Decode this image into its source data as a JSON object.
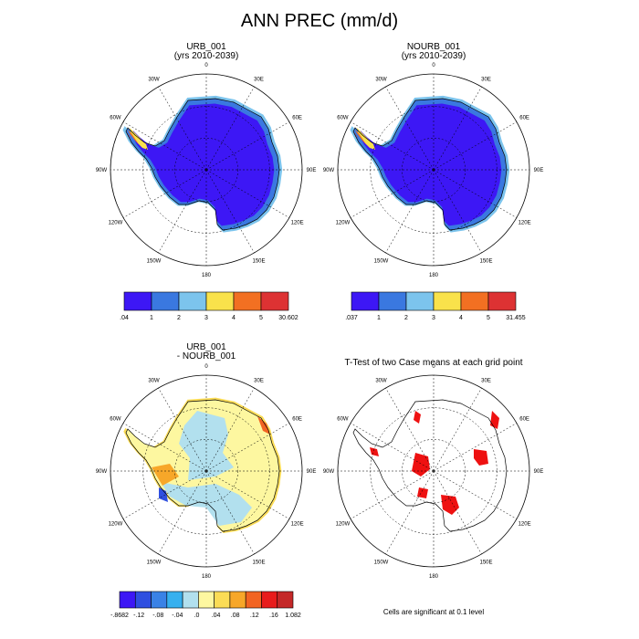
{
  "figure": {
    "title": "ANN PREC (mm/d)",
    "panels": [
      {
        "id": "urb",
        "title_line1": "URB_001",
        "title_line2": "(yrs 2010-2039)"
      },
      {
        "id": "nourb",
        "title_line1": "NOURB_001",
        "title_line2": "(yrs 2010-2039)"
      },
      {
        "id": "diff",
        "title_line1": "URB_001",
        "title_line2": "- NOURB_001"
      },
      {
        "id": "ttest",
        "title_line1": "T-Test of two Case means at each grid point",
        "title_line2": ""
      }
    ],
    "lon_labels": [
      "0",
      "30E",
      "60E",
      "90E",
      "120E",
      "150E",
      "180",
      "150W",
      "120W",
      "90W",
      "60W",
      "30W"
    ],
    "colorbar_urb": {
      "labels": [
        ".04",
        "1",
        "2",
        "3",
        "4",
        "5",
        "30.602"
      ],
      "colors": [
        "#3d17f5",
        "#3a78e0",
        "#7cc4ed",
        "#f9e24b",
        "#f27022",
        "#dd3233"
      ]
    },
    "colorbar_nourb": {
      "labels": [
        ".037",
        "1",
        "2",
        "3",
        "4",
        "5",
        "31.455"
      ],
      "colors": [
        "#3d17f5",
        "#3a78e0",
        "#7cc4ed",
        "#f9e24b",
        "#f27022",
        "#dd3233"
      ]
    },
    "colorbar_diff": {
      "labels": [
        "-.8682",
        "-.12",
        "-.08",
        "-.04",
        ".0",
        ".04",
        ".08",
        ".12",
        ".16",
        "1.082"
      ],
      "colors": [
        "#3d17f5",
        "#2f4fe0",
        "#3a82e6",
        "#37b0ee",
        "#b2e0ee",
        "#fdf7a0",
        "#fbdc56",
        "#f7a729",
        "#f26422",
        "#e81c1c",
        "#c42828"
      ]
    },
    "significance_note": "Cells are significant at 0.1 level",
    "colors": {
      "ttest_red": "#ee1111",
      "ocean": "#ffffff",
      "land_low": "#3d17f5"
    }
  }
}
